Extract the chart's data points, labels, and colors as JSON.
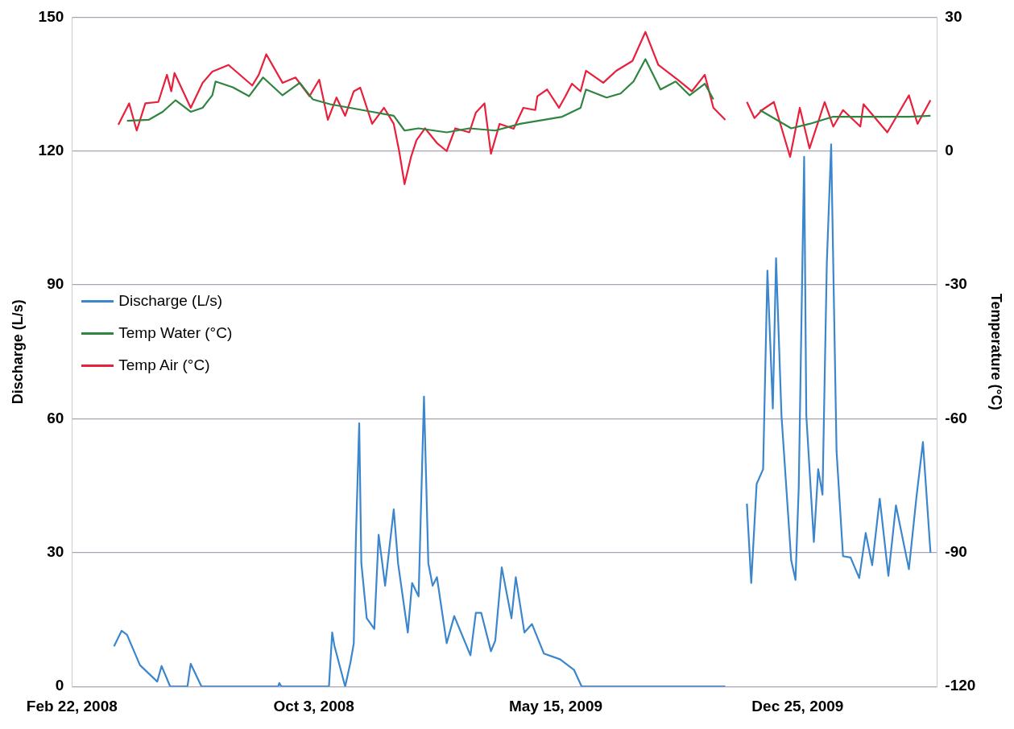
{
  "chart_data": {
    "type": "line",
    "ylabel": "Discharge (L/s)",
    "y2label": "Temperature (°C)",
    "xlim": [
      "2008-02-22",
      "2010-05-03"
    ],
    "xticks": [
      {
        "value": "2008-02-22",
        "label": "Feb 22, 2008"
      },
      {
        "value": "2008-10-03",
        "label": "Oct 3, 2008"
      },
      {
        "value": "2009-05-15",
        "label": "May 15, 2009"
      },
      {
        "value": "2009-12-25",
        "label": "Dec 25, 2009"
      }
    ],
    "ylim": [
      0,
      150
    ],
    "yticks": [
      0,
      30,
      60,
      90,
      120,
      150
    ],
    "y2lim": [
      -120,
      30
    ],
    "y2ticks": [
      -120,
      -90,
      -60,
      -30,
      0,
      30
    ],
    "grid": "y",
    "legend": "left",
    "line_style": "solid",
    "marker": "none",
    "series": [
      {
        "name": "Discharge (L/s)",
        "color": "#3b86cc",
        "x": [
          "2008-04-01",
          "2008-04-08",
          "2008-04-13",
          "2008-04-25",
          "2008-05-11",
          "2008-05-15",
          "2008-05-23",
          "2008-06-08",
          "2008-06-11",
          "2008-06-21",
          "2008-08-31",
          "2008-09-01",
          "2008-09-03",
          "2008-10-17",
          "2008-10-20",
          "2008-10-22",
          "2008-11-01",
          "2008-11-06",
          "2008-11-09",
          "2008-11-11",
          "2008-11-14",
          "2008-11-16",
          "2008-11-21",
          "2008-11-28",
          "2008-12-02",
          "2008-12-08",
          "2008-12-16",
          "2008-12-20",
          "2008-12-29",
          "2009-01-02",
          "2009-01-08",
          "2009-01-13",
          "2009-01-17",
          "2009-01-21",
          "2009-01-25",
          "2009-02-03",
          "2009-02-10",
          "2009-02-25",
          "2009-03-02",
          "2009-03-07",
          "2009-03-16",
          "2009-03-20",
          "2009-03-26",
          "2009-04-04",
          "2009-04-08",
          "2009-04-16",
          "2009-04-23",
          "2009-05-04",
          "2009-05-19",
          "2009-06-01",
          "2009-06-08",
          "2009-10-19",
          "2009-10-30",
          "2009-11-08",
          "2009-11-12",
          "2009-11-17",
          "2009-11-23",
          "2009-11-27",
          "2009-12-02",
          "2009-12-05",
          "2009-12-10",
          "2009-12-19",
          "2009-12-23",
          "2009-12-26",
          "2009-12-31",
          "2010-01-02",
          "2010-01-09",
          "2010-01-13",
          "2010-01-17",
          "2010-01-21",
          "2010-01-25",
          "2010-01-30",
          "2010-02-05",
          "2010-02-12",
          "2010-02-20",
          "2010-02-26",
          "2010-03-04",
          "2010-03-11",
          "2010-03-19",
          "2010-03-26",
          "2010-04-07",
          "2010-04-14",
          "2010-04-20",
          "2010-04-27"
        ],
        "values": [
          9,
          12.5,
          11.6,
          4.8,
          1.1,
          4.6,
          0,
          0,
          5.1,
          0,
          0,
          0.8,
          0,
          0,
          12.1,
          9.2,
          0,
          5.5,
          9.7,
          33.6,
          59,
          27.6,
          15.3,
          12.9,
          34,
          22.6,
          39.7,
          27.6,
          12.1,
          23.2,
          20.2,
          65,
          27.6,
          22.6,
          24.5,
          9.7,
          15.8,
          7,
          16.5,
          16.5,
          7.9,
          10.3,
          26.7,
          15.3,
          24.5,
          12.1,
          14,
          7.4,
          6.1,
          3.7,
          0,
          0,
          null,
          41,
          23.2,
          45.4,
          48.7,
          93.2,
          62.3,
          96,
          60.8,
          28.3,
          23.9,
          44.7,
          118.7,
          60.8,
          32.4,
          48.7,
          43,
          94.9,
          121.5,
          52.8,
          29.2,
          28.9,
          24.3,
          34.4,
          27.2,
          42.1,
          24.8,
          40.6,
          26.3,
          42.5,
          54.8,
          30
        ]
      },
      {
        "name": "Temp Water (°C)",
        "color": "#2f8540",
        "axis": "y2",
        "x": [
          "2008-04-13",
          "2008-05-03",
          "2008-05-16",
          "2008-05-28",
          "2008-06-11",
          "2008-06-22",
          "2008-07-01",
          "2008-07-04",
          "2008-07-20",
          "2008-08-04",
          "2008-08-17",
          "2008-09-04",
          "2008-09-20",
          "2008-10-02",
          "2008-10-18",
          "2008-11-26",
          "2008-12-16",
          "2008-12-26",
          "2009-01-08",
          "2009-02-03",
          "2009-02-24",
          "2009-03-20",
          "2009-04-12",
          "2009-05-21",
          "2009-06-07",
          "2009-06-12",
          "2009-07-01",
          "2009-07-14",
          "2009-07-26",
          "2009-08-06",
          "2009-08-20",
          "2009-09-03",
          "2009-09-16",
          "2009-09-30",
          "2009-10-08",
          "2009-10-30",
          "2009-11-20",
          "2009-12-19",
          "2010-01-05",
          "2010-01-27",
          "2010-03-13",
          "2010-04-07",
          "2010-04-27"
        ],
        "values": [
          6.8,
          7,
          8.8,
          11.4,
          8.8,
          9.7,
          12.5,
          15.6,
          14.3,
          12.3,
          16.5,
          12.5,
          15.3,
          11.6,
          10.5,
          8.8,
          7.9,
          4.6,
          5.1,
          4.2,
          5.1,
          4.6,
          6.1,
          7.7,
          9.7,
          13.8,
          12,
          12.9,
          15.6,
          20.6,
          13.8,
          15.6,
          12.5,
          15.1,
          11.6,
          null,
          9.2,
          5.1,
          6.1,
          7.7,
          7.7,
          7.7,
          7.9
        ]
      },
      {
        "name": "Temp Air (°C)",
        "color": "#e8203c",
        "axis": "y2",
        "x": [
          "2008-04-05",
          "2008-04-15",
          "2008-04-22",
          "2008-04-30",
          "2008-05-12",
          "2008-05-20",
          "2008-05-24",
          "2008-05-27",
          "2008-06-11",
          "2008-06-22",
          "2008-07-01",
          "2008-07-16",
          "2008-08-07",
          "2008-08-13",
          "2008-08-20",
          "2008-09-04",
          "2008-09-16",
          "2008-09-29",
          "2008-10-08",
          "2008-10-16",
          "2008-10-24",
          "2008-11-01",
          "2008-11-09",
          "2008-11-15",
          "2008-11-26",
          "2008-12-07",
          "2008-12-16",
          "2008-12-21",
          "2008-12-26",
          "2009-01-01",
          "2009-01-06",
          "2009-01-14",
          "2009-01-25",
          "2009-02-03",
          "2009-02-11",
          "2009-02-24",
          "2009-03-02",
          "2009-03-10",
          "2009-03-16",
          "2009-03-24",
          "2009-04-06",
          "2009-04-15",
          "2009-04-26",
          "2009-04-28",
          "2009-05-07",
          "2009-05-18",
          "2009-05-24",
          "2009-05-30",
          "2009-06-07",
          "2009-06-12",
          "2009-06-28",
          "2009-07-10",
          "2009-07-25",
          "2009-08-06",
          "2009-08-18",
          "2009-09-05",
          "2009-09-18",
          "2009-09-30",
          "2009-10-08",
          "2009-10-19",
          "2009-10-30",
          "2009-11-08",
          "2009-11-15",
          "2009-11-22",
          "2009-12-03",
          "2009-12-18",
          "2009-12-27",
          "2010-01-05",
          "2010-01-19",
          "2010-01-27",
          "2010-02-05",
          "2010-02-21",
          "2010-02-24",
          "2010-03-18",
          "2010-04-07",
          "2010-04-15",
          "2010-04-27"
        ],
        "values": [
          5.9,
          10.7,
          4.6,
          10.7,
          11,
          17.1,
          13.4,
          17.5,
          9.7,
          15.3,
          17.8,
          19.3,
          14.7,
          17.1,
          21.7,
          15.3,
          16.5,
          12.3,
          16,
          7,
          12,
          7.9,
          13.4,
          14.2,
          6.1,
          9.7,
          6.1,
          0,
          -7.4,
          -1.3,
          2.4,
          5.1,
          1.8,
          0,
          5.1,
          4.2,
          8.6,
          10.7,
          -0.6,
          6.1,
          5,
          9.7,
          9.2,
          12.3,
          13.8,
          9.7,
          12.3,
          15.1,
          13.4,
          18,
          15.3,
          18,
          20.2,
          26.7,
          19.3,
          16,
          13.4,
          17.1,
          9.7,
          7,
          null,
          11,
          7.4,
          9.2,
          11,
          -1.3,
          9.7,
          0.6,
          11,
          5.5,
          9.2,
          5.5,
          10.5,
          4.2,
          12.5,
          6.1,
          11.4
        ]
      }
    ]
  }
}
